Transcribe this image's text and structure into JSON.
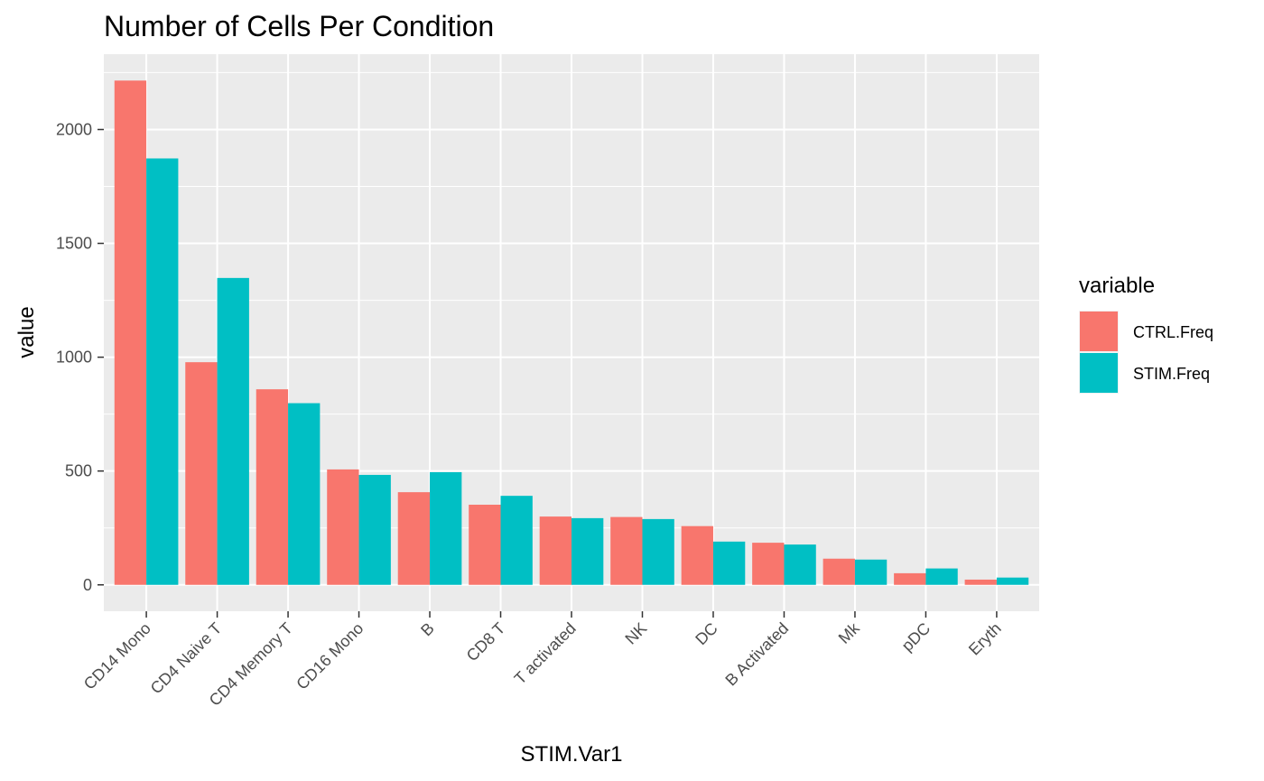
{
  "chart_data": {
    "type": "bar",
    "title": "Number of Cells Per Condition",
    "xlabel": "STIM.Var1",
    "ylabel": "value",
    "categories": [
      "CD14 Mono",
      "CD4 Naive T",
      "CD4 Memory T",
      "CD16 Mono",
      "B",
      "CD8 T",
      "T activated",
      "NK",
      "DC",
      "B Activated",
      "Mk",
      "pDC",
      "Eryth"
    ],
    "series": [
      {
        "name": "CTRL.Freq",
        "color": "#F8766D",
        "values": [
          2215,
          978,
          859,
          507,
          407,
          352,
          300,
          298,
          258,
          185,
          115,
          51,
          23
        ]
      },
      {
        "name": "STIM.Freq",
        "color": "#00BFC4",
        "values": [
          1873,
          1348,
          798,
          483,
          495,
          391,
          293,
          289,
          190,
          177,
          111,
          72,
          32
        ]
      }
    ],
    "yticks": [
      0,
      500,
      1000,
      1500,
      2000
    ],
    "ylim": [
      -116,
      2331
    ],
    "grid": true,
    "legend": {
      "title": "variable",
      "placement": "right"
    }
  }
}
